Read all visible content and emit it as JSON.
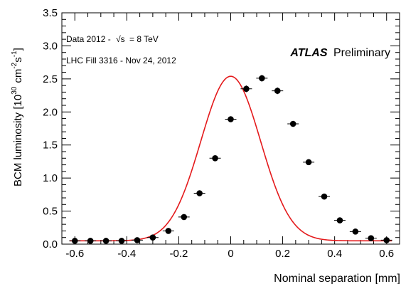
{
  "chart_data": {
    "type": "scatter",
    "xlabel": "Nominal separation [mm]",
    "ylabel_main": "BCM luminosity [10",
    "ylabel_exp": "30",
    "ylabel_unit_cm": "cm",
    "ylabel_unit_cm_exp": "-2",
    "ylabel_unit_s": "s",
    "ylabel_unit_s_exp": "-1",
    "ylabel_close": "]",
    "xlim": [
      -0.65,
      0.65
    ],
    "ylim": [
      0,
      3.5
    ],
    "xticks": [
      -0.6,
      -0.4,
      -0.2,
      0,
      0.2,
      0.4,
      0.6
    ],
    "xtick_labels": [
      "-0.6",
      "-0.4",
      "-0.2",
      "0",
      "0.2",
      "0.4",
      "0.6"
    ],
    "yticks": [
      0,
      0.5,
      1,
      1.5,
      2,
      2.5,
      3,
      3.5
    ],
    "ytick_labels": [
      "0.0",
      "0.5",
      "1.0",
      "1.5",
      "2.0",
      "2.5",
      "3.0",
      "3.5"
    ],
    "annotations": {
      "data_prefix": "Data 2012 -",
      "sqrt_s": "√s",
      "energy": "= 8 TeV",
      "fill": "LHC Fill 3316 - Nov 24, 2012",
      "experiment": "ATLAS",
      "status": "Preliminary"
    },
    "points": {
      "x": [
        -0.6,
        -0.54,
        -0.48,
        -0.42,
        -0.36,
        -0.3,
        -0.24,
        -0.18,
        -0.12,
        -0.06,
        0,
        0.06,
        0.12,
        0.18,
        0.24,
        0.3,
        0.36,
        0.42,
        0.48,
        0.54,
        0.6
      ],
      "y": [
        0.05,
        0.05,
        0.05,
        0.05,
        0.06,
        0.1,
        0.2,
        0.41,
        0.77,
        1.3,
        1.89,
        2.35,
        2.51,
        2.32,
        1.82,
        1.24,
        0.72,
        0.36,
        0.19,
        0.09,
        0.06
      ],
      "error": [
        0.02,
        0.02,
        0.02,
        0.02,
        0.02,
        0.02,
        0.02,
        0.03,
        0.03,
        0.04,
        0.04,
        0.05,
        0.05,
        0.05,
        0.04,
        0.04,
        0.03,
        0.03,
        0.02,
        0.02,
        0.02
      ]
    },
    "fit": {
      "type": "gaussian",
      "color": "#e41a1c",
      "amplitude": 2.49,
      "mean": 0,
      "sigma": 0.115,
      "baseline": 0.05
    },
    "grid": false,
    "marker_color": "#000000"
  }
}
